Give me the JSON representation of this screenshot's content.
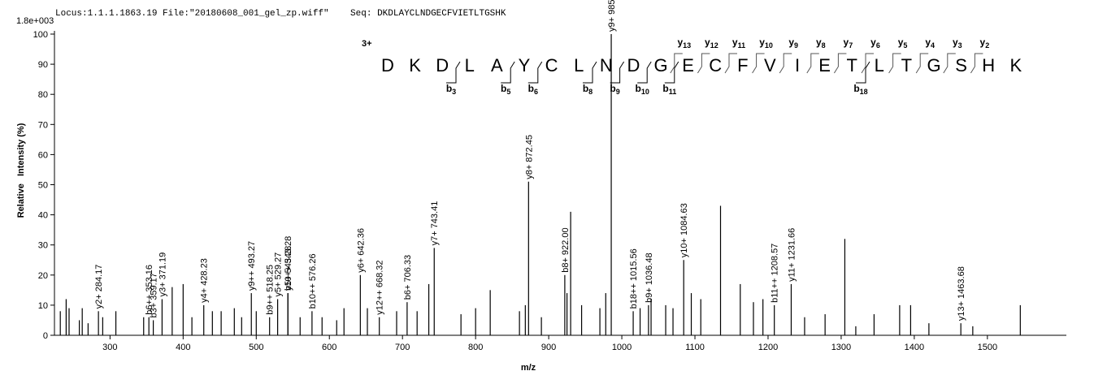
{
  "chart_data": {
    "type": "stem",
    "header": "Locus:1.1.1.1863.19 File:\"20180608_001_gel_zp.wiff\"    Seq: DKDLAYCLNDGECFVIETLTGSHK",
    "scale_label": "1.8e+003",
    "y_label": "Relative   Intensity (%)",
    "x_label": "m/z",
    "xlim": [
      224,
      1608
    ],
    "ylim": [
      0,
      100
    ],
    "xticks": [
      300,
      400,
      500,
      600,
      700,
      800,
      900,
      1000,
      1100,
      1200,
      1300,
      1400,
      1500
    ],
    "yticks": [
      0,
      10,
      20,
      30,
      40,
      50,
      60,
      70,
      80,
      90,
      100
    ],
    "color": "#000000",
    "x": [
      232,
      240,
      244,
      258,
      262,
      270,
      290,
      308,
      346,
      385,
      400,
      412,
      440,
      452,
      470,
      480,
      500,
      560,
      590,
      610,
      620,
      652,
      692,
      720,
      736,
      780,
      800,
      820,
      860,
      868,
      890,
      925,
      930,
      945,
      970,
      978,
      1025,
      1040,
      1060,
      1070,
      1095,
      1108,
      1135,
      1162,
      1180,
      1193,
      1250,
      1278,
      1305,
      1320,
      1345,
      1380,
      1395,
      1420,
      1480,
      1545
    ],
    "values": [
      8,
      12,
      9,
      5,
      9,
      4,
      6,
      8,
      6,
      16,
      17,
      6,
      8,
      8,
      9,
      6,
      8,
      6,
      6,
      5,
      9,
      9,
      8,
      8,
      17,
      7,
      9,
      15,
      8,
      10,
      6,
      14,
      41,
      10,
      9,
      14,
      9,
      12,
      10,
      9,
      14,
      12,
      43,
      17,
      11,
      12,
      6,
      7,
      32,
      3,
      7,
      10,
      10,
      4,
      3,
      10
    ],
    "annotations": [
      {
        "mz": 284.17,
        "intensity": 8,
        "label": "y2+ 284.17",
        "color": "#8c8c8c"
      },
      {
        "mz": 353.16,
        "intensity": 6,
        "label": "b6++ 353.16",
        "color": "#000000"
      },
      {
        "mz": 359.17,
        "intensity": 5,
        "label": "b3+ 359.17",
        "color": "#000000"
      },
      {
        "mz": 371.19,
        "intensity": 12,
        "label": "y3+ 371.19",
        "color": "#8c8c8c"
      },
      {
        "mz": 428.23,
        "intensity": 10,
        "label": "y4+ 428.23",
        "color": "#8c8c8c"
      },
      {
        "mz": 493.27,
        "intensity": 14,
        "label": "y9++ 493.27",
        "color": "#8c8c8c"
      },
      {
        "mz": 518.25,
        "intensity": 6,
        "label": "b9++ 518.25",
        "color": "#000000"
      },
      {
        "mz": 529.27,
        "intensity": 12,
        "label": "y5+ 529.27",
        "color": "#8c8c8c"
      },
      {
        "mz": 543.28,
        "intensity": 14,
        "label": "y10++ 543.28",
        "color": "#8c8c8c"
      },
      {
        "mz": 543.28,
        "intensity": 14,
        "label": "b5+ 543.28",
        "color": "#000000"
      },
      {
        "mz": 576.26,
        "intensity": 8,
        "label": "b10++ 576.26",
        "color": "#000000"
      },
      {
        "mz": 642.36,
        "intensity": 20,
        "label": "y6+ 642.36",
        "color": "#8c8c8c"
      },
      {
        "mz": 668.32,
        "intensity": 6,
        "label": "y12++ 668.32",
        "color": "#8c8c8c"
      },
      {
        "mz": 706.33,
        "intensity": 11,
        "label": "b6+ 706.33",
        "color": "#000000"
      },
      {
        "mz": 743.41,
        "intensity": 29,
        "label": "y7+ 743.41",
        "color": "#8c8c8c"
      },
      {
        "mz": 872.45,
        "intensity": 51,
        "label": "y8+ 872.45",
        "color": "#8c8c8c"
      },
      {
        "mz": 922.0,
        "intensity": 20,
        "label": "b8+ 922.00",
        "color": "#000000"
      },
      {
        "mz": 985.53,
        "intensity": 100,
        "label": "y9+ 985.53",
        "color": "#8c8c8c"
      },
      {
        "mz": 1015.56,
        "intensity": 8,
        "label": "b18++ 1015.56",
        "color": "#000000"
      },
      {
        "mz": 1036.48,
        "intensity": 10,
        "label": "b9+ 1036.48",
        "color": "#000000"
      },
      {
        "mz": 1084.63,
        "intensity": 25,
        "label": "y10+ 1084.63",
        "color": "#8c8c8c"
      },
      {
        "mz": 1208.57,
        "intensity": 10,
        "label": "b11++ 1208.57",
        "color": "#000000"
      },
      {
        "mz": 1231.66,
        "intensity": 17,
        "label": "y11+ 1231.66",
        "color": "#8c8c8c"
      },
      {
        "mz": 1463.68,
        "intensity": 4,
        "label": "y13+ 1463.68",
        "color": "#8c8c8c"
      }
    ],
    "sequence": {
      "charge": "3+",
      "residues": [
        "D",
        "K",
        "D",
        "L",
        "A",
        "Y",
        "C",
        "L",
        "N",
        "D",
        "G",
        "E",
        "C",
        "F",
        "V",
        "I",
        "E",
        "T",
        "L",
        "T",
        "G",
        "S",
        "H",
        "K"
      ],
      "y_ions": [
        "y13",
        "y12",
        "y11",
        "y10",
        "y9",
        "y8",
        "y7",
        "y6",
        "y5",
        "y4",
        "y3",
        "y2"
      ],
      "b_ions": [
        "b3",
        "b5",
        "b6",
        "b8",
        "b9",
        "b10",
        "b11",
        "b18"
      ]
    }
  }
}
